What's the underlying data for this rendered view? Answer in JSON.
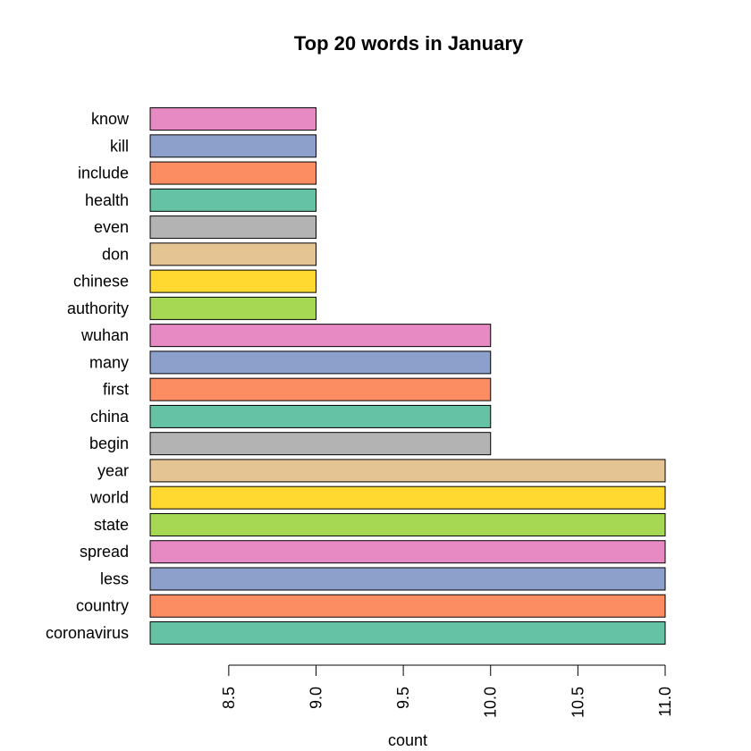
{
  "chart_data": {
    "type": "bar",
    "orientation": "horizontal",
    "title": "Top 20 words in January",
    "xlabel": "count",
    "ylabel": "",
    "xlim": [
      8.05,
      11.0
    ],
    "ticks": [
      "8.5",
      "9.0",
      "9.5",
      "10.0",
      "10.5",
      "11.0"
    ],
    "tick_values": [
      8.5,
      9.0,
      9.5,
      10.0,
      10.5,
      11.0
    ],
    "grid": false,
    "categories": [
      "coronavirus",
      "country",
      "less",
      "spread",
      "state",
      "world",
      "year",
      "begin",
      "china",
      "first",
      "many",
      "wuhan",
      "authority",
      "chinese",
      "don",
      "even",
      "health",
      "include",
      "kill",
      "know"
    ],
    "values": [
      11,
      11,
      11,
      11,
      11,
      11,
      11,
      10,
      10,
      10,
      10,
      10,
      9,
      9,
      9,
      9,
      9,
      9,
      9,
      9
    ],
    "colors": [
      "#66C2A5",
      "#FC8D62",
      "#8DA0CB",
      "#E78AC3",
      "#A6D854",
      "#FFD92F",
      "#E5C494",
      "#B3B3B3"
    ]
  }
}
